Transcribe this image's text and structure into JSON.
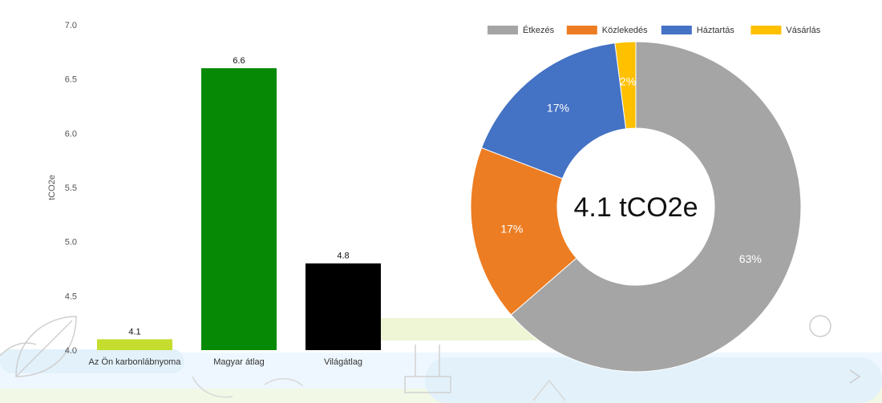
{
  "chart_data": [
    {
      "type": "bar",
      "title": "",
      "xlabel": "",
      "ylabel": "tCO2e",
      "ylim": [
        4.0,
        7.0
      ],
      "yticks": [
        "4.0",
        "4.5",
        "5.0",
        "5.5",
        "6.0",
        "6.5",
        "7.0"
      ],
      "grid": false,
      "categories": [
        "Az Ön karbonlábnyoma",
        "Magyar átlag",
        "Világátlag"
      ],
      "values": [
        4.1,
        6.6,
        4.8
      ],
      "value_labels": [
        "4.1",
        "6.6",
        "4.8"
      ],
      "colors": [
        "#c5dd2e",
        "#068a06",
        "#000000"
      ]
    },
    {
      "type": "pie",
      "title": "",
      "center_label": "4.1 tCO2e",
      "legend_position": "top",
      "categories": [
        "Étkezés",
        "Közlekedés",
        "Háztartás",
        "Vásárlás"
      ],
      "values": [
        63,
        17,
        17,
        2
      ],
      "value_labels": [
        "63%",
        "17%",
        "17%",
        "2%"
      ],
      "colors": [
        "#a5a5a5",
        "#ed7d22",
        "#4472c4",
        "#ffc000"
      ]
    }
  ]
}
